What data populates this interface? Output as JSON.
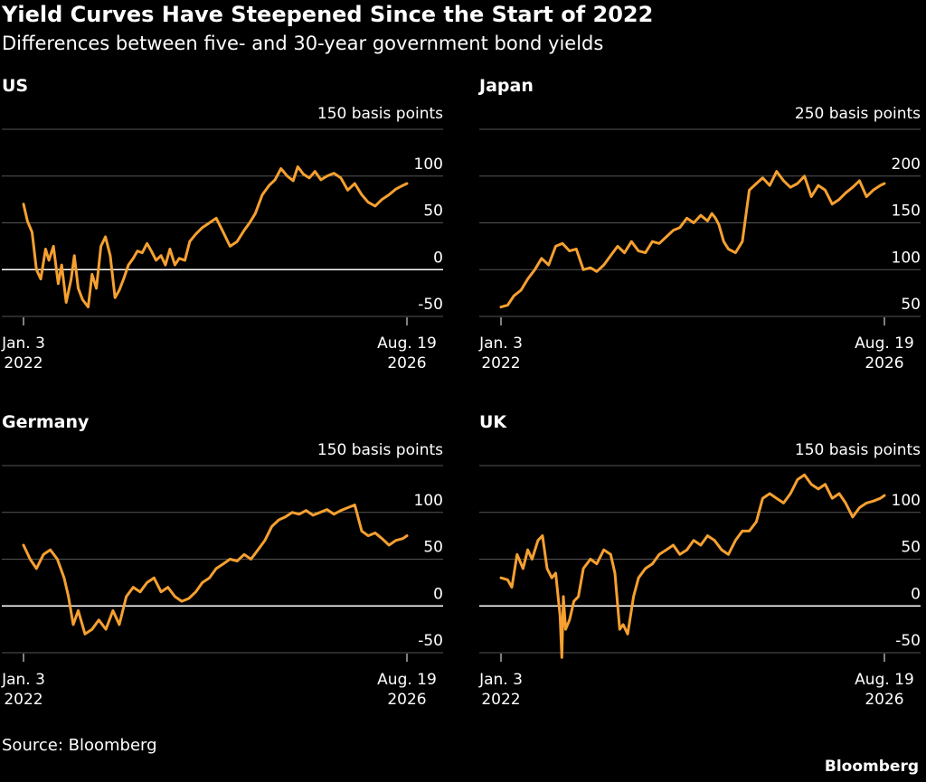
{
  "header": {
    "title": "Yield Curves Have Steepened Since the Start of 2022",
    "subtitle": "Differences between five- and 30-year government bond yields"
  },
  "footer": {
    "source": "Source: Bloomberg",
    "brand": "Bloomberg"
  },
  "colors": {
    "background": "#000000",
    "line": "#f5a030",
    "grid": "#555555",
    "zero_line": "#ffffff",
    "text": "#ffffff"
  },
  "chart_data": [
    {
      "type": "line",
      "panel_title": "US",
      "unit_label": "150 basis points",
      "ylim": [
        -50,
        150
      ],
      "yticks": [
        150,
        100,
        50,
        0,
        -50
      ],
      "ytick_labels": [
        "",
        "100",
        "50",
        "0",
        "-50"
      ],
      "x_start_label": [
        "Jan. 3",
        "2022"
      ],
      "x_end_label": [
        "Aug. 19",
        "2026"
      ],
      "xlim": [
        "2022-01-03",
        "2026-08-19"
      ],
      "grid": true,
      "series": [
        {
          "x": [
            "2022-01-03",
            "2022-01-20",
            "2022-02-10",
            "2022-03-01",
            "2022-03-20",
            "2022-04-10",
            "2022-04-25",
            "2022-05-15",
            "2022-06-05",
            "2022-06-20",
            "2022-07-10",
            "2022-08-01",
            "2022-08-15",
            "2022-09-01",
            "2022-09-20",
            "2022-10-15",
            "2022-11-01",
            "2022-11-20",
            "2022-12-10",
            "2022-12-30",
            "2023-01-20",
            "2023-02-10",
            "2023-03-01",
            "2023-03-20",
            "2023-04-10",
            "2023-05-01",
            "2023-05-20",
            "2023-06-10",
            "2023-07-01",
            "2023-07-20",
            "2023-08-10",
            "2023-09-01",
            "2023-09-20",
            "2023-10-10",
            "2023-11-01",
            "2023-11-20",
            "2023-12-15",
            "2024-01-05",
            "2024-02-01",
            "2024-03-01",
            "2024-04-01",
            "2024-05-01",
            "2024-06-01",
            "2024-07-01",
            "2024-08-01",
            "2024-09-01",
            "2024-09-25",
            "2024-10-20",
            "2024-11-20",
            "2024-12-20",
            "2025-01-15",
            "2025-02-10",
            "2025-03-10",
            "2025-04-05",
            "2025-04-25",
            "2025-05-20",
            "2025-06-15",
            "2025-07-10",
            "2025-08-05",
            "2025-09-01",
            "2025-10-01",
            "2025-11-01",
            "2025-12-01",
            "2026-01-01",
            "2026-02-01",
            "2026-03-01",
            "2026-04-01",
            "2026-05-01",
            "2026-06-01",
            "2026-07-01",
            "2026-08-01",
            "2026-08-19"
          ],
          "y": [
            70,
            52,
            40,
            0,
            -10,
            22,
            10,
            25,
            -15,
            5,
            -35,
            -10,
            15,
            -20,
            -32,
            -40,
            -5,
            -20,
            25,
            35,
            15,
            -30,
            -22,
            -10,
            5,
            12,
            20,
            18,
            28,
            20,
            10,
            15,
            5,
            22,
            5,
            12,
            10,
            30,
            38,
            45,
            50,
            55,
            40,
            25,
            30,
            42,
            50,
            60,
            80,
            90,
            96,
            108,
            100,
            95,
            110,
            102,
            98,
            105,
            96,
            100,
            103,
            98,
            85,
            92,
            80,
            72,
            68,
            75,
            80,
            86,
            90,
            92
          ]
        }
      ]
    },
    {
      "type": "line",
      "panel_title": "Japan",
      "unit_label": "250 basis points",
      "ylim": [
        50,
        250
      ],
      "yticks": [
        250,
        200,
        150,
        100,
        50
      ],
      "ytick_labels": [
        "",
        "200",
        "150",
        "100",
        "50"
      ],
      "x_start_label": [
        "Jan. 3",
        "2022"
      ],
      "x_end_label": [
        "Aug. 19",
        "2026"
      ],
      "xlim": [
        "2022-01-03",
        "2026-08-19"
      ],
      "grid": true,
      "series": [
        {
          "x": [
            "2022-01-03",
            "2022-02-01",
            "2022-03-01",
            "2022-04-01",
            "2022-05-01",
            "2022-06-01",
            "2022-07-01",
            "2022-08-01",
            "2022-09-01",
            "2022-10-01",
            "2022-11-01",
            "2022-12-01",
            "2023-01-01",
            "2023-02-01",
            "2023-03-01",
            "2023-04-01",
            "2023-05-01",
            "2023-06-01",
            "2023-07-01",
            "2023-08-01",
            "2023-09-01",
            "2023-10-01",
            "2023-11-01",
            "2023-12-01",
            "2024-01-01",
            "2024-02-01",
            "2024-03-01",
            "2024-04-01",
            "2024-05-01",
            "2024-06-01",
            "2024-07-01",
            "2024-07-20",
            "2024-08-05",
            "2024-08-20",
            "2024-09-10",
            "2024-10-01",
            "2024-11-01",
            "2024-12-01",
            "2025-01-01",
            "2025-02-01",
            "2025-03-01",
            "2025-04-01",
            "2025-05-01",
            "2025-06-01",
            "2025-07-01",
            "2025-08-01",
            "2025-09-01",
            "2025-10-01",
            "2025-11-01",
            "2025-12-01",
            "2026-01-01",
            "2026-02-01",
            "2026-03-01",
            "2026-04-01",
            "2026-05-01",
            "2026-06-01",
            "2026-07-01",
            "2026-08-01",
            "2026-08-19"
          ],
          "y": [
            60,
            62,
            72,
            78,
            90,
            100,
            112,
            105,
            125,
            128,
            120,
            122,
            100,
            102,
            98,
            105,
            115,
            125,
            118,
            130,
            120,
            118,
            130,
            128,
            135,
            142,
            145,
            155,
            150,
            158,
            152,
            160,
            155,
            148,
            130,
            122,
            118,
            130,
            185,
            192,
            198,
            190,
            205,
            195,
            188,
            192,
            200,
            178,
            190,
            185,
            170,
            175,
            182,
            188,
            195,
            178,
            185,
            190,
            192
          ]
        }
      ]
    },
    {
      "type": "line",
      "panel_title": "Germany",
      "unit_label": "150 basis points",
      "ylim": [
        -50,
        150
      ],
      "yticks": [
        150,
        100,
        50,
        0,
        -50
      ],
      "ytick_labels": [
        "",
        "100",
        "50",
        "0",
        "-50"
      ],
      "x_start_label": [
        "Jan. 3",
        "2022"
      ],
      "x_end_label": [
        "Aug. 19",
        "2026"
      ],
      "xlim": [
        "2022-01-03",
        "2026-08-19"
      ],
      "grid": true,
      "series": [
        {
          "x": [
            "2022-01-03",
            "2022-02-01",
            "2022-03-01",
            "2022-04-01",
            "2022-05-01",
            "2022-06-01",
            "2022-07-01",
            "2022-07-20",
            "2022-08-10",
            "2022-09-01",
            "2022-10-01",
            "2022-11-01",
            "2022-12-01",
            "2023-01-01",
            "2023-02-01",
            "2023-03-01",
            "2023-04-01",
            "2023-05-01",
            "2023-06-01",
            "2023-07-01",
            "2023-08-01",
            "2023-09-01",
            "2023-10-01",
            "2023-11-01",
            "2023-12-01",
            "2024-01-01",
            "2024-02-01",
            "2024-03-01",
            "2024-04-01",
            "2024-05-01",
            "2024-06-01",
            "2024-07-01",
            "2024-08-01",
            "2024-09-01",
            "2024-10-01",
            "2024-11-01",
            "2024-12-01",
            "2025-01-01",
            "2025-02-01",
            "2025-03-01",
            "2025-04-01",
            "2025-05-01",
            "2025-06-01",
            "2025-07-01",
            "2025-08-01",
            "2025-09-01",
            "2025-10-01",
            "2025-11-01",
            "2025-12-01",
            "2026-01-01",
            "2026-02-01",
            "2026-03-01",
            "2026-04-01",
            "2026-05-01",
            "2026-06-01",
            "2026-07-01",
            "2026-08-01",
            "2026-08-19"
          ],
          "y": [
            65,
            50,
            40,
            55,
            60,
            50,
            30,
            10,
            -20,
            -5,
            -30,
            -25,
            -15,
            -25,
            -5,
            -20,
            10,
            20,
            15,
            25,
            30,
            15,
            20,
            10,
            5,
            8,
            15,
            25,
            30,
            40,
            45,
            50,
            48,
            55,
            50,
            60,
            70,
            85,
            92,
            95,
            100,
            98,
            102,
            97,
            100,
            103,
            98,
            102,
            105,
            108,
            80,
            75,
            78,
            72,
            65,
            70,
            72,
            75
          ]
        }
      ]
    },
    {
      "type": "line",
      "panel_title": "UK",
      "unit_label": "150 basis points",
      "ylim": [
        -50,
        150
      ],
      "yticks": [
        150,
        100,
        50,
        0,
        -50
      ],
      "ytick_labels": [
        "",
        "100",
        "50",
        "0",
        "-50"
      ],
      "x_start_label": [
        "Jan. 3",
        "2022"
      ],
      "x_end_label": [
        "Aug. 19",
        "2026"
      ],
      "xlim": [
        "2022-01-03",
        "2026-08-19"
      ],
      "grid": true,
      "series": [
        {
          "x": [
            "2022-01-03",
            "2022-02-01",
            "2022-02-20",
            "2022-03-15",
            "2022-04-10",
            "2022-05-01",
            "2022-05-20",
            "2022-06-15",
            "2022-07-05",
            "2022-07-25",
            "2022-08-15",
            "2022-09-01",
            "2022-09-20",
            "2022-09-28",
            "2022-10-05",
            "2022-10-15",
            "2022-11-01",
            "2022-11-20",
            "2022-12-10",
            "2023-01-01",
            "2023-02-01",
            "2023-03-01",
            "2023-04-01",
            "2023-05-01",
            "2023-05-20",
            "2023-06-10",
            "2023-06-25",
            "2023-07-15",
            "2023-08-10",
            "2023-09-01",
            "2023-10-01",
            "2023-11-01",
            "2023-12-01",
            "2024-01-01",
            "2024-02-01",
            "2024-03-01",
            "2024-04-01",
            "2024-05-01",
            "2024-06-01",
            "2024-07-01",
            "2024-08-01",
            "2024-09-01",
            "2024-10-01",
            "2024-11-01",
            "2024-12-01",
            "2025-01-01",
            "2025-02-01",
            "2025-03-01",
            "2025-04-01",
            "2025-05-01",
            "2025-06-01",
            "2025-07-01",
            "2025-08-01",
            "2025-09-01",
            "2025-10-01",
            "2025-11-01",
            "2025-12-01",
            "2026-01-01",
            "2026-02-01",
            "2026-03-01",
            "2026-04-01",
            "2026-05-01",
            "2026-06-01",
            "2026-07-01",
            "2026-08-01",
            "2026-08-19"
          ],
          "y": [
            30,
            28,
            20,
            55,
            40,
            60,
            50,
            70,
            75,
            40,
            30,
            35,
            -10,
            -55,
            10,
            -25,
            -15,
            5,
            10,
            40,
            50,
            45,
            60,
            55,
            35,
            -25,
            -20,
            -30,
            10,
            30,
            40,
            45,
            55,
            60,
            65,
            55,
            60,
            70,
            65,
            75,
            70,
            60,
            55,
            70,
            80,
            80,
            90,
            115,
            120,
            115,
            110,
            120,
            135,
            140,
            130,
            125,
            130,
            115,
            120,
            110,
            95,
            105,
            110,
            112,
            115,
            118
          ]
        }
      ]
    }
  ]
}
